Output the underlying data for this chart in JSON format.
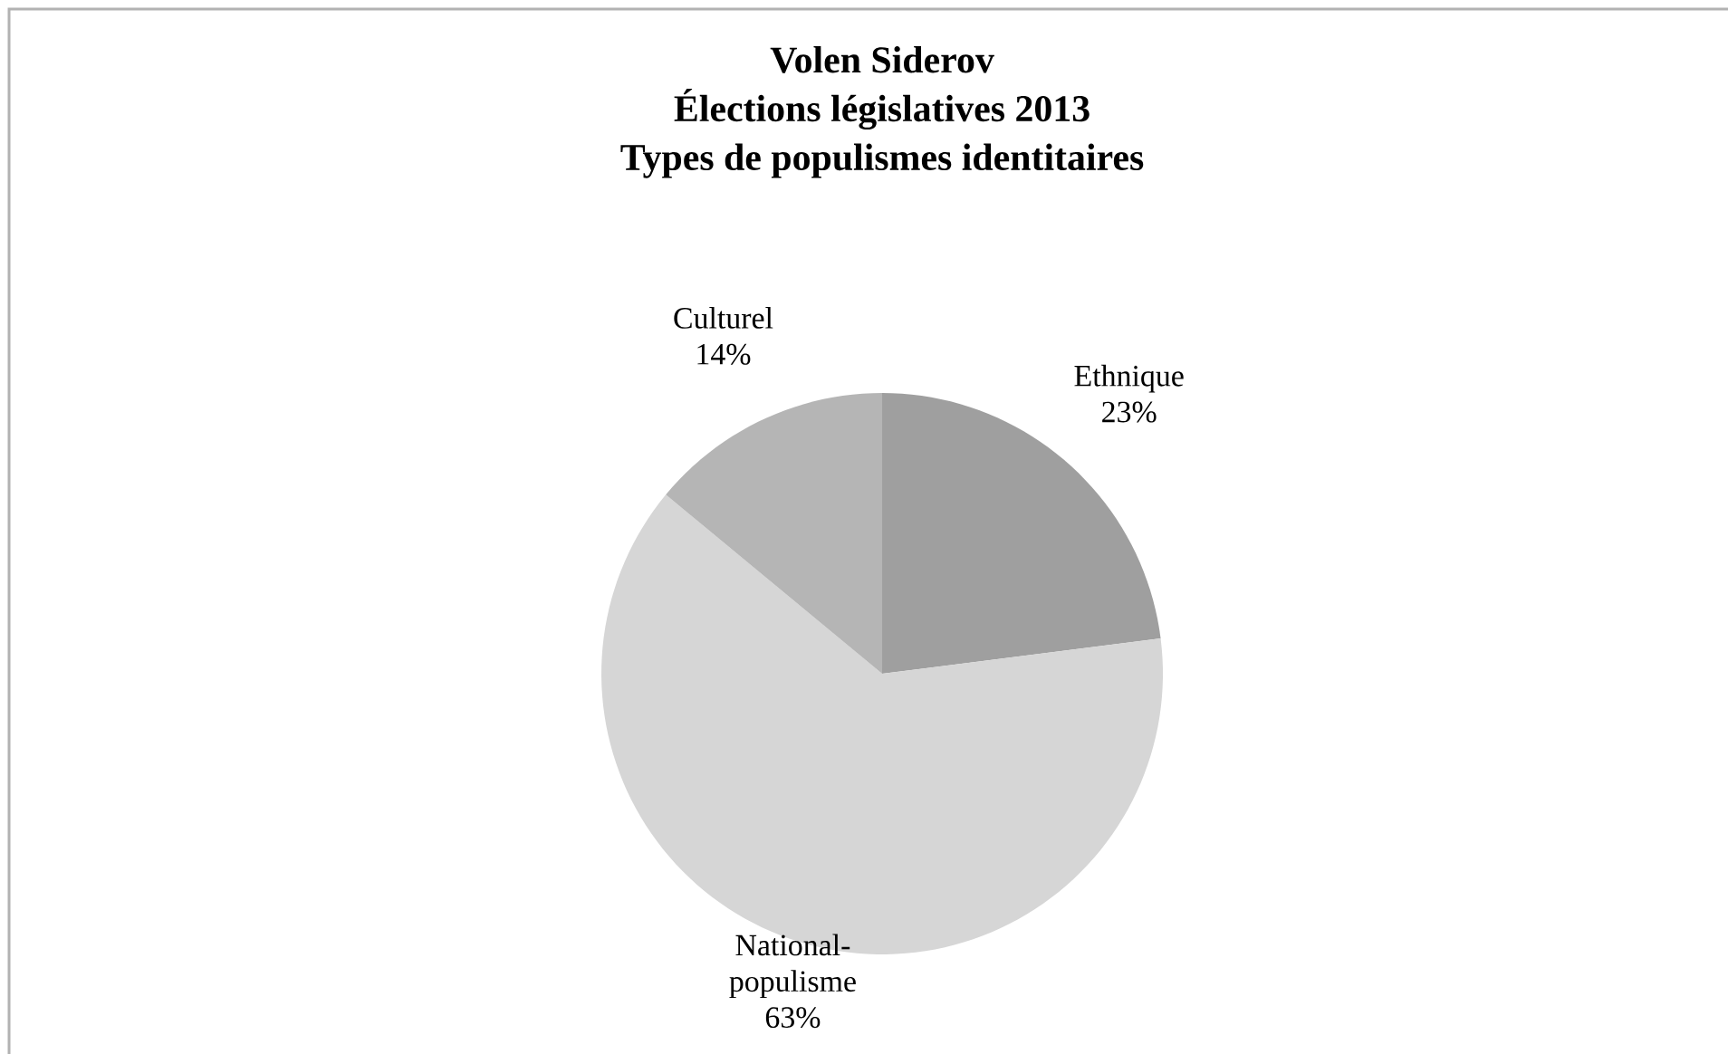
{
  "chart_data": {
    "type": "pie",
    "title": "Volen Siderov",
    "subtitle": "Élections législatives 2013",
    "annotations": [
      "Types de populismes identitaires"
    ],
    "categories": [
      "Ethnique",
      "National-populisme",
      "Culturel"
    ],
    "values": [
      23,
      63,
      14
    ],
    "value_labels": [
      "23%",
      "63%",
      "14%"
    ],
    "colors": [
      "#9f9f9f",
      "#d6d6d6",
      "#b5b5b5"
    ]
  }
}
